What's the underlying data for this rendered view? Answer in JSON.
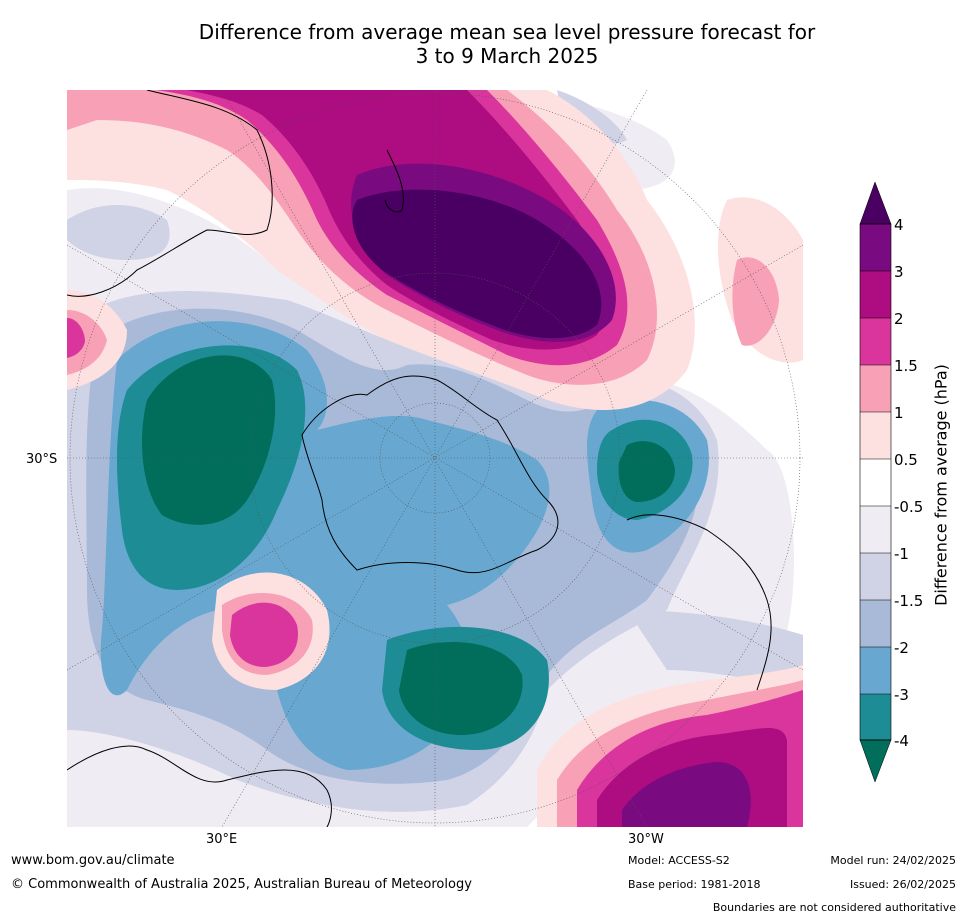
{
  "title": {
    "line1": "Difference from average mean sea level pressure forecast for",
    "line2": "3 to 9 March 2025"
  },
  "axis_labels": {
    "lat": "30°S",
    "lon_east": "30°E",
    "lon_west": "30°W"
  },
  "colorbar": {
    "title": "Difference from average (hPa)",
    "ticks": [
      "4",
      "3",
      "2",
      "1.5",
      "1",
      "0.5",
      "-0.5",
      "-1",
      "-1.5",
      "-2",
      "-3",
      "-4"
    ],
    "colors": {
      "above_4": "#4a0062",
      "3_4": "#7a0a80",
      "2_3": "#ad0d80",
      "1.5_2": "#d9359c",
      "1_1.5": "#f7a0b6",
      "0.5_1": "#fde0e0",
      "neutral": "#ffffff",
      "-1_-0.5": "#f0ecf4",
      "-1.5_-1": "#d0d2e6",
      "-2_-1.5": "#a8bad8",
      "-3_-2": "#68a8d0",
      "-4_-3": "#1e8c94",
      "below_-4": "#006e5a"
    }
  },
  "footer": {
    "website": "www.bom.gov.au/climate",
    "copyright": "© Commonwealth of Australia 2025, Australian Bureau of Meteorology",
    "model": "Model: ACCESS-S2",
    "base_period": "Base period: 1981-2018",
    "model_run": "Model run: 24/02/2025",
    "issued": "Issued: 26/02/2025",
    "disclaimer": "Boundaries are not considered authoritative"
  }
}
